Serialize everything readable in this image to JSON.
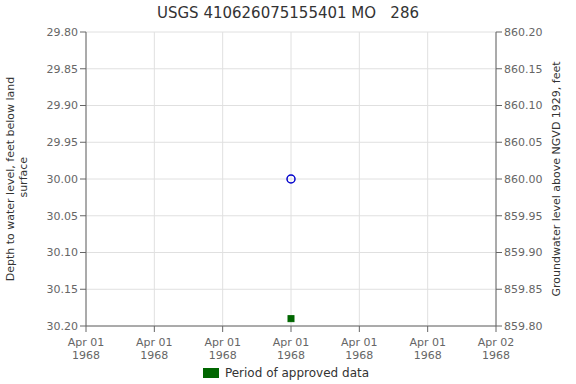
{
  "chart_data": {
    "type": "scatter",
    "title": "USGS 410626075155401 MO   286",
    "ylabel": "Depth to water level, feet below land\n surface",
    "y2label": "Groundwater level above NGVD 1929, feet",
    "categories": [
      "Apr 01\n1968",
      "Apr 01\n1968",
      "Apr 01\n1968",
      "Apr 01\n1968",
      "Apr 01\n1968",
      "Apr 01\n1968",
      "Apr 02\n1968"
    ],
    "series": [
      {
        "color": "#0000cc",
        "marker": "circle",
        "values": [
          null,
          null,
          null,
          30.0,
          null,
          null,
          null
        ]
      },
      {
        "name": "Period of approved data",
        "color": "#006600",
        "marker": "square",
        "values": [
          null,
          null,
          null,
          30.19,
          null,
          null,
          null
        ]
      }
    ],
    "ylim": [
      30.2,
      29.8
    ],
    "yticks": [
      {
        "value": 29.8,
        "label": "29.80"
      },
      {
        "value": 29.85,
        "label": "29.85"
      },
      {
        "value": 29.9,
        "label": "29.90"
      },
      {
        "value": 29.95,
        "label": "29.95"
      },
      {
        "value": 30.0,
        "label": "30.00"
      },
      {
        "value": 30.05,
        "label": "30.05"
      },
      {
        "value": 30.1,
        "label": "30.10"
      },
      {
        "value": 30.15,
        "label": "30.15"
      },
      {
        "value": 30.2,
        "label": "30.20"
      }
    ],
    "y2lim": [
      859.8,
      860.2
    ],
    "y2ticks": [
      {
        "value": 860.2,
        "label": "860.20"
      },
      {
        "value": 860.15,
        "label": "860.15"
      },
      {
        "value": 860.1,
        "label": "860.10"
      },
      {
        "value": 860.05,
        "label": "860.05"
      },
      {
        "value": 860.0,
        "label": "860.00"
      },
      {
        "value": 859.95,
        "label": "859.95"
      },
      {
        "value": 859.9,
        "label": "859.90"
      },
      {
        "value": 859.85,
        "label": "859.85"
      },
      {
        "value": 859.8,
        "label": "859.80"
      }
    ],
    "grid": true,
    "legend": "bottom"
  }
}
